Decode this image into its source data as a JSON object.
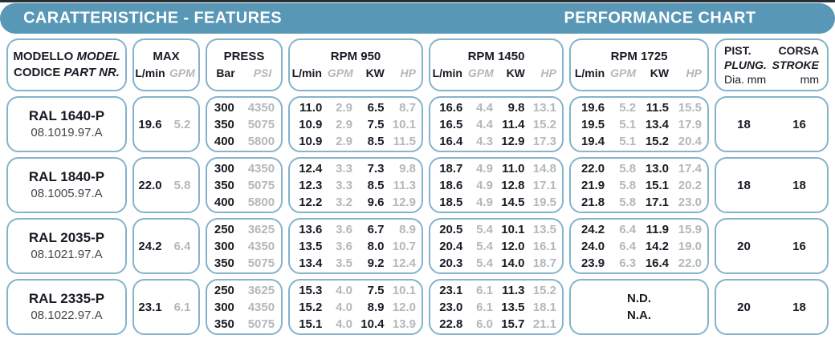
{
  "title_bar": {
    "left": "CARATTERISTICHE - FEATURES",
    "right": "PERFORMANCE CHART"
  },
  "colors": {
    "bar_blue": "#5897b6",
    "box_border": "#84b3cb",
    "text_dark": "#1a1a24",
    "text_gray": "#b4b8bb"
  },
  "header": {
    "model": {
      "line1_plain": "MODELLO",
      "line1_italic": "MODEL",
      "line2_plain": "CODICE",
      "line2_italic": "PART NR."
    },
    "max": {
      "title": "MAX",
      "units": [
        "L/min",
        "GPM"
      ]
    },
    "press": {
      "title": "PRESS",
      "units": [
        "Bar",
        "PSI"
      ]
    },
    "rpm": [
      {
        "title": "RPM 950",
        "units": [
          "L/min",
          "GPM",
          "KW",
          "HP"
        ]
      },
      {
        "title": "RPM 1450",
        "units": [
          "L/min",
          "GPM",
          "KW",
          "HP"
        ]
      },
      {
        "title": "RPM 1725",
        "units": [
          "L/min",
          "GPM",
          "KW",
          "HP"
        ]
      }
    ],
    "piston": {
      "left": [
        "PIST.",
        "PLUNG.",
        "Dia. mm"
      ],
      "right": [
        "CORSA",
        "STROKE",
        "mm"
      ]
    }
  },
  "rows": [
    {
      "model": "RAL 1640-P",
      "code": "08.1019.97.A",
      "max": [
        "19.6",
        "5.2"
      ],
      "press": [
        [
          "300",
          "4350"
        ],
        [
          "350",
          "5075"
        ],
        [
          "400",
          "5800"
        ]
      ],
      "rpm950": [
        [
          "11.0",
          "2.9",
          "6.5",
          "8.7"
        ],
        [
          "10.9",
          "2.9",
          "7.5",
          "10.1"
        ],
        [
          "10.9",
          "2.9",
          "8.5",
          "11.5"
        ]
      ],
      "rpm1450": [
        [
          "16.6",
          "4.4",
          "9.8",
          "13.1"
        ],
        [
          "16.5",
          "4.4",
          "11.4",
          "15.2"
        ],
        [
          "16.4",
          "4.3",
          "12.9",
          "17.3"
        ]
      ],
      "rpm1725": [
        [
          "19.6",
          "5.2",
          "11.5",
          "15.5"
        ],
        [
          "19.5",
          "5.1",
          "13.4",
          "17.9"
        ],
        [
          "19.4",
          "5.1",
          "15.2",
          "20.4"
        ]
      ],
      "piston": "18",
      "stroke": "16"
    },
    {
      "model": "RAL 1840-P",
      "code": "08.1005.97.A",
      "max": [
        "22.0",
        "5.8"
      ],
      "press": [
        [
          "300",
          "4350"
        ],
        [
          "350",
          "5075"
        ],
        [
          "400",
          "5800"
        ]
      ],
      "rpm950": [
        [
          "12.4",
          "3.3",
          "7.3",
          "9.8"
        ],
        [
          "12.3",
          "3.3",
          "8.5",
          "11.3"
        ],
        [
          "12.2",
          "3.2",
          "9.6",
          "12.9"
        ]
      ],
      "rpm1450": [
        [
          "18.7",
          "4.9",
          "11.0",
          "14.8"
        ],
        [
          "18.6",
          "4.9",
          "12.8",
          "17.1"
        ],
        [
          "18.5",
          "4.9",
          "14.5",
          "19.5"
        ]
      ],
      "rpm1725": [
        [
          "22.0",
          "5.8",
          "13.0",
          "17.4"
        ],
        [
          "21.9",
          "5.8",
          "15.1",
          "20.2"
        ],
        [
          "21.8",
          "5.8",
          "17.1",
          "23.0"
        ]
      ],
      "piston": "18",
      "stroke": "18"
    },
    {
      "model": "RAL 2035-P",
      "code": "08.1021.97.A",
      "max": [
        "24.2",
        "6.4"
      ],
      "press": [
        [
          "250",
          "3625"
        ],
        [
          "300",
          "4350"
        ],
        [
          "350",
          "5075"
        ]
      ],
      "rpm950": [
        [
          "13.6",
          "3.6",
          "6.7",
          "8.9"
        ],
        [
          "13.5",
          "3.6",
          "8.0",
          "10.7"
        ],
        [
          "13.4",
          "3.5",
          "9.2",
          "12.4"
        ]
      ],
      "rpm1450": [
        [
          "20.5",
          "5.4",
          "10.1",
          "13.5"
        ],
        [
          "20.4",
          "5.4",
          "12.0",
          "16.1"
        ],
        [
          "20.3",
          "5.4",
          "14.0",
          "18.7"
        ]
      ],
      "rpm1725": [
        [
          "24.2",
          "6.4",
          "11.9",
          "15.9"
        ],
        [
          "24.0",
          "6.4",
          "14.2",
          "19.0"
        ],
        [
          "23.9",
          "6.3",
          "16.4",
          "22.0"
        ]
      ],
      "piston": "20",
      "stroke": "16"
    },
    {
      "model": "RAL 2335-P",
      "code": "08.1022.97.A",
      "max": [
        "23.1",
        "6.1"
      ],
      "press": [
        [
          "250",
          "3625"
        ],
        [
          "300",
          "4350"
        ],
        [
          "350",
          "5075"
        ]
      ],
      "rpm950": [
        [
          "15.3",
          "4.0",
          "7.5",
          "10.1"
        ],
        [
          "15.2",
          "4.0",
          "8.9",
          "12.0"
        ],
        [
          "15.1",
          "4.0",
          "10.4",
          "13.9"
        ]
      ],
      "rpm1450": [
        [
          "23.1",
          "6.1",
          "11.3",
          "15.2"
        ],
        [
          "23.0",
          "6.1",
          "13.5",
          "18.1"
        ],
        [
          "22.8",
          "6.0",
          "15.7",
          "21.1"
        ]
      ],
      "rpm1725": {
        "unavailable": [
          "N.D.",
          "N.A."
        ]
      },
      "piston": "20",
      "stroke": "18"
    }
  ]
}
